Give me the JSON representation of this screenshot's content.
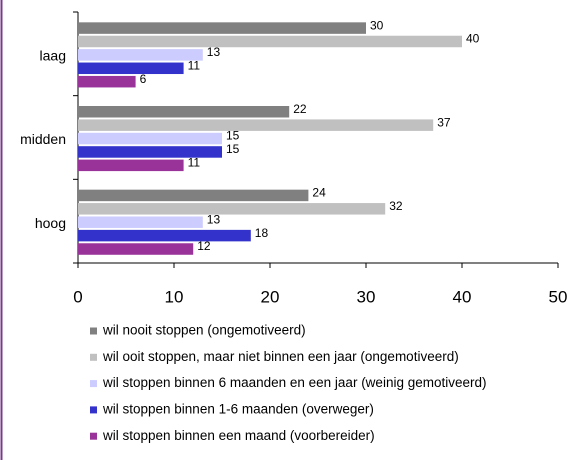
{
  "chart_data": {
    "type": "bar",
    "orientation": "horizontal",
    "categories": [
      "laag",
      "midden",
      "hoog"
    ],
    "series": [
      {
        "name": "wil nooit stoppen (ongemotiveerd)",
        "color": "#808080",
        "values": [
          30,
          22,
          24
        ]
      },
      {
        "name": "wil ooit stoppen, maar niet binnen een jaar (ongemotiveerd)",
        "color": "#c0c0c0",
        "values": [
          40,
          37,
          32
        ]
      },
      {
        "name": "wil stoppen binnen 6 maanden en een jaar (weinig gemotiveerd)",
        "color": "#ccccff",
        "values": [
          13,
          15,
          13
        ]
      },
      {
        "name": "wil stoppen binnen 1-6 maanden (overweger)",
        "color": "#3333cc",
        "values": [
          11,
          15,
          18
        ]
      },
      {
        "name": "wil stoppen binnen een maand (voorbereider)",
        "color": "#993399",
        "values": [
          6,
          11,
          12
        ]
      }
    ],
    "xlim": [
      0,
      50
    ],
    "xticks": [
      0,
      10,
      20,
      30,
      40,
      50
    ],
    "grid": false,
    "legend": "bottom"
  }
}
